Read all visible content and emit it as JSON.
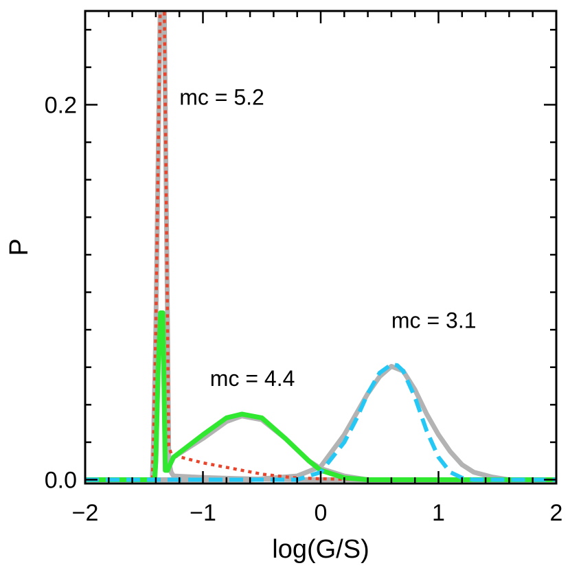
{
  "chart_data": {
    "type": "line",
    "xlabel": "log(G/S)",
    "ylabel": "P",
    "xlim": [
      -2,
      2
    ],
    "ylim": [
      -0.002,
      0.25
    ],
    "x_ticks": [
      -2,
      -1,
      0,
      1,
      2
    ],
    "x_tick_labels": [
      "−2",
      "−1",
      "0",
      "1",
      "2"
    ],
    "y_ticks": [
      0.0,
      0.2
    ],
    "y_tick_labels": [
      "0.0",
      "0.2"
    ],
    "grid": false,
    "reference_line": {
      "y": 0,
      "style": "dotted",
      "color": "#000000"
    },
    "annotations": [
      {
        "text": "mc = 5.2",
        "x": -1.2,
        "y": 0.2
      },
      {
        "text": "mc = 4.4",
        "x": -0.94,
        "y": 0.05
      },
      {
        "text": "mc = 3.1",
        "x": 0.6,
        "y": 0.081
      }
    ],
    "series": [
      {
        "color": "#b3b3b3",
        "style": "solid",
        "x": [
          -2,
          -1.43,
          -1.42,
          -1.4,
          -1.36,
          -1.33,
          -1.3,
          -1.29,
          -1.27,
          -1.25,
          -1.0,
          -0.75,
          -0.5,
          -0.25,
          0.0,
          0.5,
          1.0,
          1.5,
          2
        ],
        "y": [
          0,
          0,
          0.02,
          0.08,
          0.265,
          0.265,
          0.08,
          0.01,
          0.004,
          0.002,
          0.0012,
          0.0007,
          0.0003,
          0.0001,
          0,
          0,
          0,
          0,
          0
        ]
      },
      {
        "color": "#b3b3b3",
        "style": "solid",
        "x": [
          -2,
          -1.41,
          -1.4,
          -1.38,
          -1.36,
          -1.34,
          -1.33,
          -1.32,
          -1.3,
          -1.28,
          -1.25,
          -1.0,
          -0.8,
          -0.67,
          -0.5,
          -0.3,
          -0.1,
          0.0,
          0.2,
          0.4,
          2
        ],
        "y": [
          0,
          0,
          0.01,
          0.06,
          0.089,
          0.089,
          0.05,
          0.01,
          0.005,
          0.008,
          0.012,
          0.022,
          0.031,
          0.034,
          0.032,
          0.022,
          0.01,
          0.006,
          0.002,
          0,
          0
        ]
      },
      {
        "color": "#b3b3b3",
        "style": "solid",
        "x": [
          -2,
          -0.6,
          -0.2,
          0.0,
          0.2,
          0.4,
          0.5,
          0.6,
          0.7,
          0.8,
          0.9,
          1.0,
          1.1,
          1.2,
          1.3,
          1.45,
          1.6,
          2
        ],
        "y": [
          0,
          0,
          0.002,
          0.007,
          0.024,
          0.046,
          0.055,
          0.0605,
          0.058,
          0.048,
          0.035,
          0.024,
          0.015,
          0.008,
          0.004,
          0.0015,
          0,
          0
        ]
      },
      {
        "color": "#e8452c",
        "style": "dotted",
        "x": [
          -2,
          -1.43,
          -1.42,
          -1.4,
          -1.36,
          -1.33,
          -1.3,
          -1.29,
          -1.27,
          -1.25,
          -1.0,
          -0.75,
          -0.5,
          -0.25,
          0.0,
          0.5,
          1.0,
          1.5,
          2
        ],
        "y": [
          0,
          0,
          0.02,
          0.08,
          0.265,
          0.265,
          0.08,
          0.018,
          0.014,
          0.013,
          0.009,
          0.006,
          0.003,
          0.0012,
          0.0005,
          0,
          0,
          0,
          0
        ]
      },
      {
        "color": "#2fe82f",
        "style": "solid",
        "x": [
          -2,
          -1.41,
          -1.4,
          -1.38,
          -1.36,
          -1.34,
          -1.33,
          -1.32,
          -1.3,
          -1.28,
          -1.25,
          -1.0,
          -0.8,
          -0.67,
          -0.5,
          -0.3,
          -0.1,
          0.0,
          0.2,
          0.4,
          2
        ],
        "y": [
          0,
          0,
          0.01,
          0.06,
          0.089,
          0.089,
          0.05,
          0.005,
          0.005,
          0.008,
          0.012,
          0.024,
          0.033,
          0.035,
          0.033,
          0.022,
          0.01,
          0.005,
          0.001,
          0,
          0
        ]
      },
      {
        "color": "#25c8f5",
        "style": "dashed",
        "x": [
          -2,
          -0.2,
          0.0,
          0.2,
          0.3,
          0.4,
          0.5,
          0.6,
          0.65,
          0.7,
          0.8,
          0.9,
          1.0,
          1.1,
          1.2,
          1.3,
          2
        ],
        "y": [
          0,
          0,
          0.004,
          0.02,
          0.032,
          0.046,
          0.057,
          0.0615,
          0.061,
          0.058,
          0.044,
          0.026,
          0.012,
          0.004,
          0.001,
          0,
          0
        ]
      }
    ]
  }
}
